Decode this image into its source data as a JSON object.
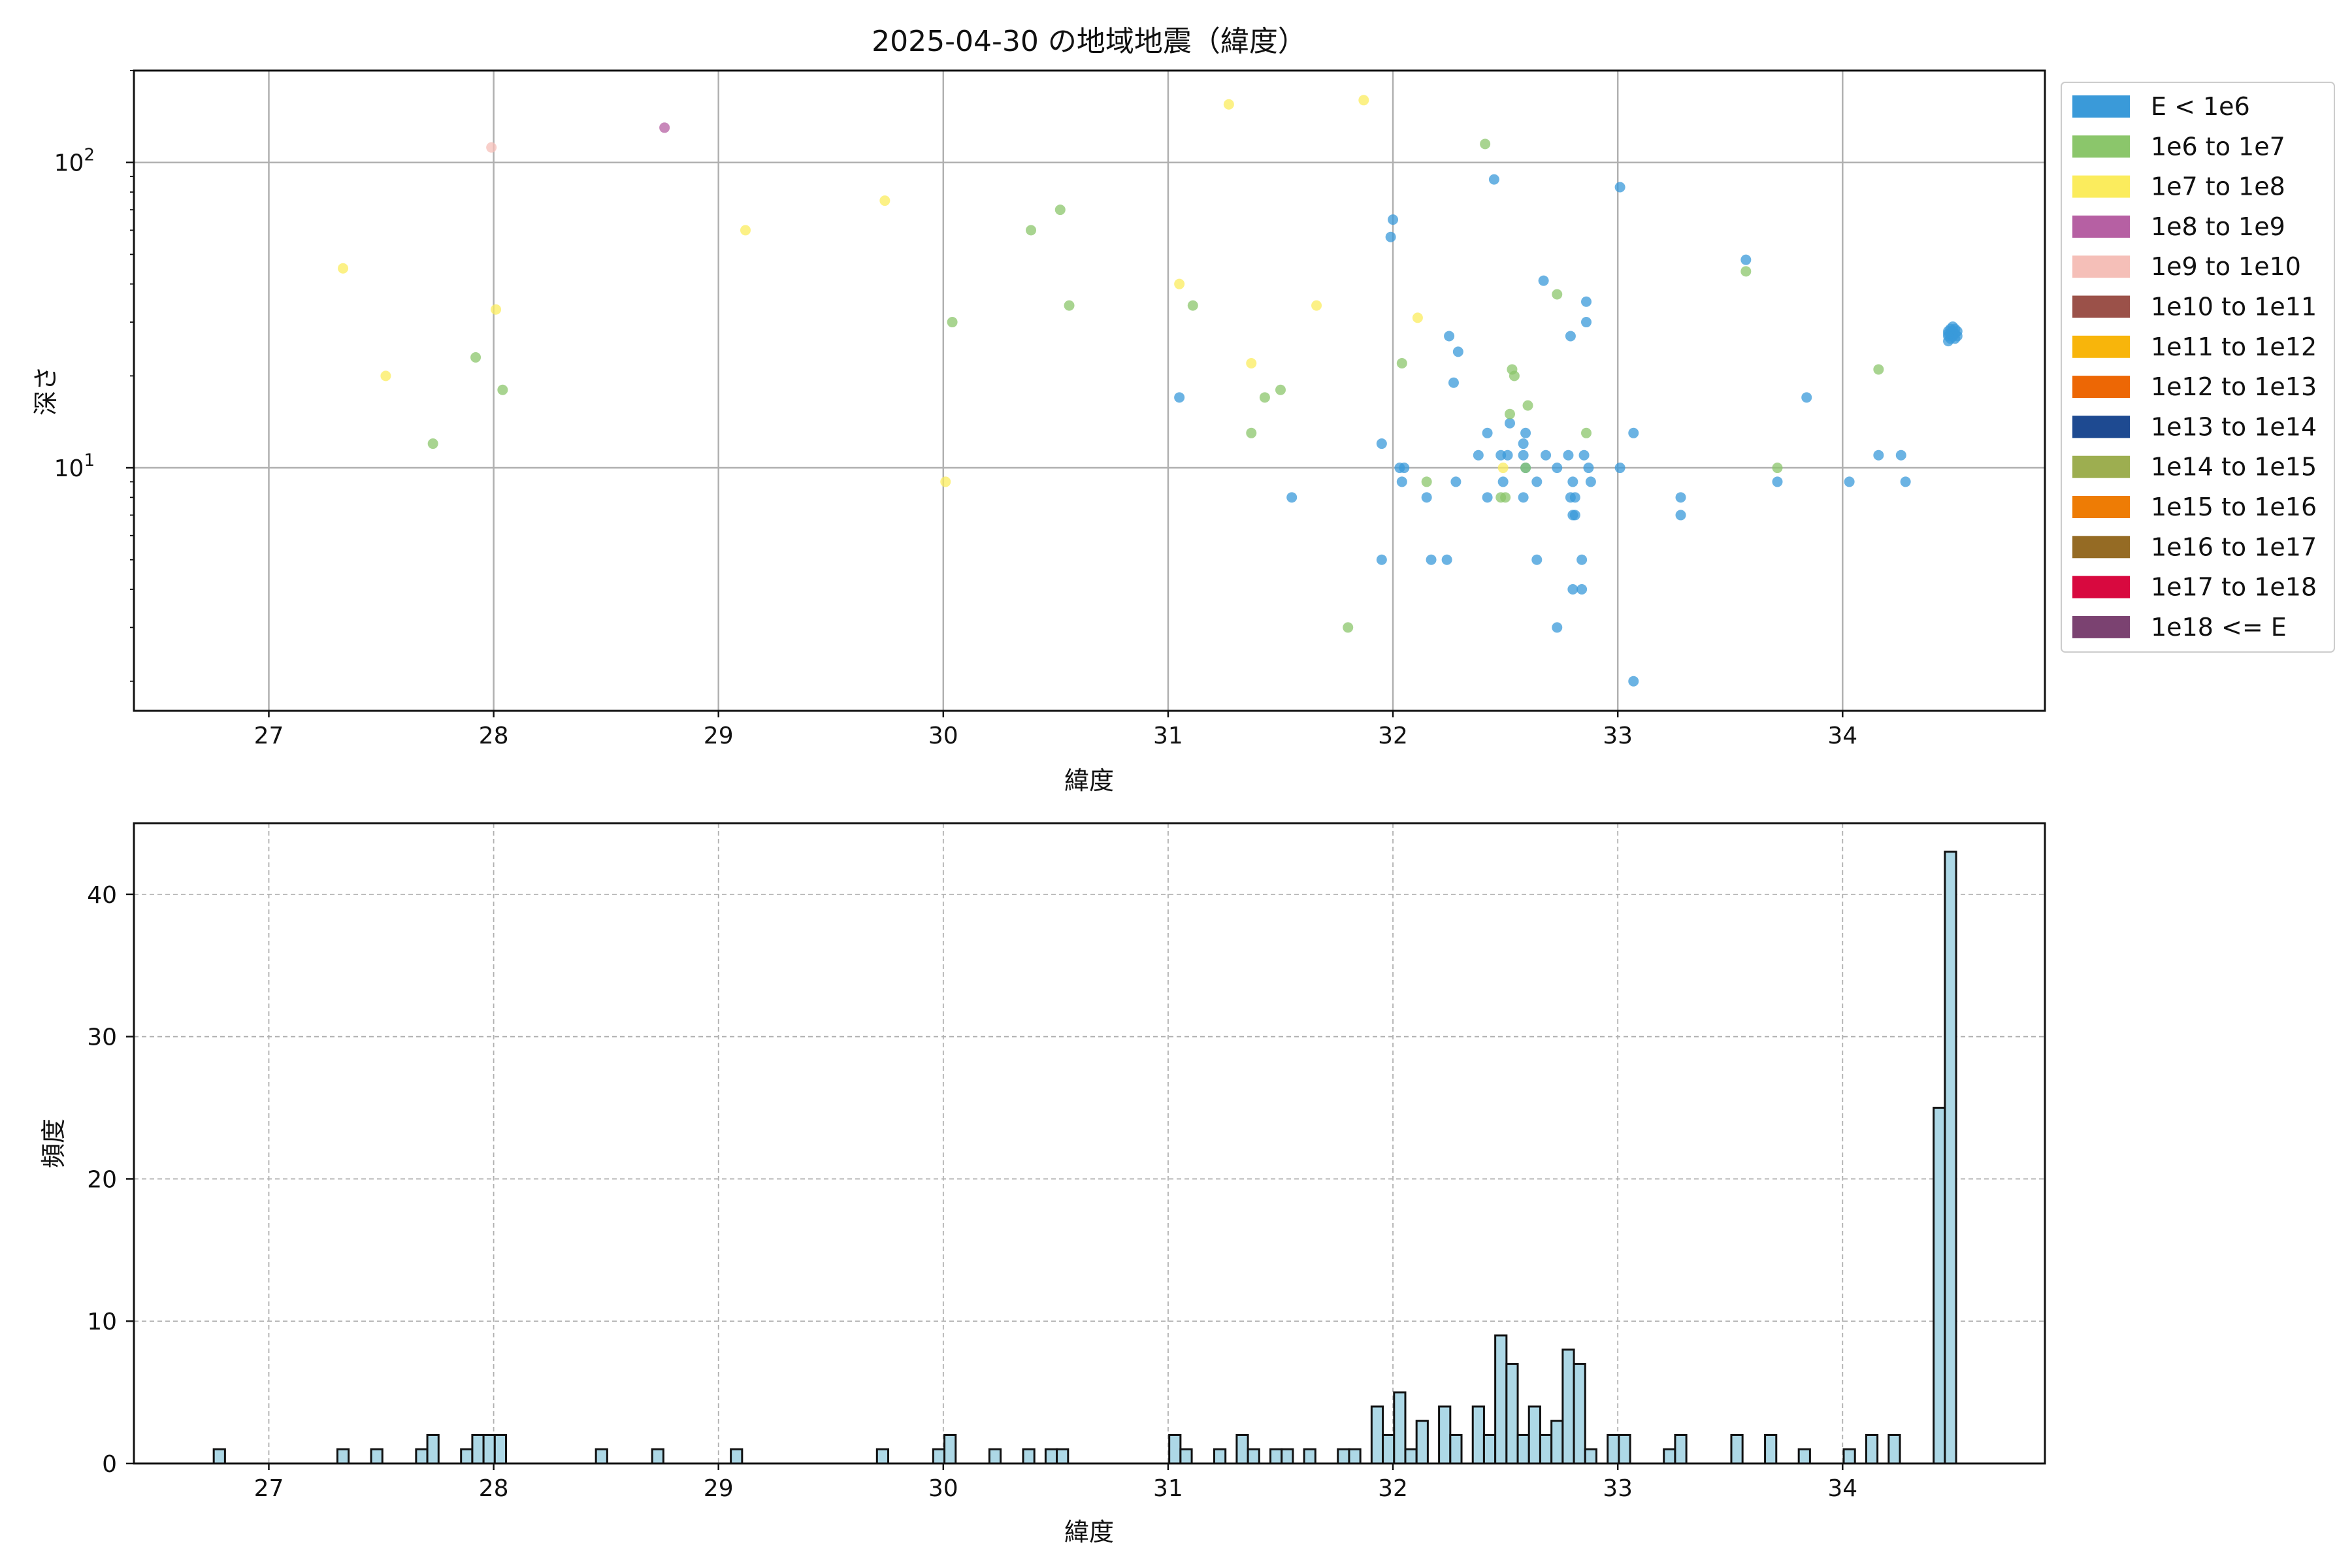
{
  "chart_data": [
    {
      "type": "scatter",
      "title": "2025-04-30 の地域地震（緯度）",
      "xlabel": "緯度",
      "ylabel": "深さ",
      "xlim": [
        26.4,
        34.9
      ],
      "ylim": [
        200,
        1.6
      ],
      "y_scale": "log",
      "y_inverted": true,
      "grid": true,
      "x_ticks": [
        27,
        28,
        29,
        30,
        31,
        32,
        33,
        34
      ],
      "y_ticks": [
        {
          "value": 10,
          "base": "10",
          "exp": "1"
        },
        {
          "value": 100,
          "base": "10",
          "exp": "2"
        }
      ],
      "legend_position": "upper right outside",
      "legend": [
        {
          "label": "E < 1e6",
          "color": "#3a9ad9"
        },
        {
          "label": "1e6 to 1e7",
          "color": "#8bc66b"
        },
        {
          "label": "1e7 to 1e8",
          "color": "#fbec5d"
        },
        {
          "label": "1e8 to 1e9",
          "color": "#b660a3"
        },
        {
          "label": "1e9 to 1e10",
          "color": "#f5bfb8"
        },
        {
          "label": "1e10 to 1e11",
          "color": "#9b5149"
        },
        {
          "label": "1e11 to 1e12",
          "color": "#f8b50b"
        },
        {
          "label": "1e12 to 1e13",
          "color": "#ed6705"
        },
        {
          "label": "1e13 to 1e14",
          "color": "#1e4a91"
        },
        {
          "label": "1e14 to 1e15",
          "color": "#9dae50"
        },
        {
          "label": "1e15 to 1e16",
          "color": "#ee7c05"
        },
        {
          "label": "1e16 to 1e17",
          "color": "#956b24"
        },
        {
          "label": "1e17 to 1e18",
          "color": "#d8093f"
        },
        {
          "label": "1e18 <= E",
          "color": "#7b4271"
        }
      ],
      "series": [
        {
          "name": "E < 1e6",
          "color": "#3a9ad9",
          "points": [
            [
              33.07,
              2.0
            ],
            [
              32.73,
              3.0
            ],
            [
              32.8,
              4.0
            ],
            [
              32.84,
              4.0
            ],
            [
              31.95,
              5.0
            ],
            [
              32.64,
              5.0
            ],
            [
              32.17,
              5.0
            ],
            [
              32.24,
              5.0
            ],
            [
              32.84,
              5.0
            ],
            [
              32.8,
              7.0
            ],
            [
              32.81,
              7.0
            ],
            [
              33.28,
              7.0
            ],
            [
              31.55,
              8.0
            ],
            [
              32.15,
              8.0
            ],
            [
              32.42,
              8.0
            ],
            [
              32.58,
              8.0
            ],
            [
              32.79,
              8.0
            ],
            [
              32.81,
              8.0
            ],
            [
              33.28,
              8.0
            ],
            [
              32.04,
              9.0
            ],
            [
              32.28,
              9.0
            ],
            [
              32.49,
              9.0
            ],
            [
              32.64,
              9.0
            ],
            [
              32.8,
              9.0
            ],
            [
              32.88,
              9.0
            ],
            [
              33.71,
              9.0
            ],
            [
              34.03,
              9.0
            ],
            [
              34.28,
              9.0
            ],
            [
              32.03,
              10.0
            ],
            [
              32.05,
              10.0
            ],
            [
              32.59,
              10.0
            ],
            [
              32.73,
              10.0
            ],
            [
              32.87,
              10.0
            ],
            [
              33.01,
              10.0
            ],
            [
              32.38,
              11.0
            ],
            [
              32.48,
              11.0
            ],
            [
              32.51,
              11.0
            ],
            [
              32.58,
              11.0
            ],
            [
              32.68,
              11.0
            ],
            [
              32.78,
              11.0
            ],
            [
              32.85,
              11.0
            ],
            [
              34.16,
              11.0
            ],
            [
              34.26,
              11.0
            ],
            [
              31.95,
              12.0
            ],
            [
              32.58,
              12.0
            ],
            [
              32.42,
              13.0
            ],
            [
              32.59,
              13.0
            ],
            [
              33.07,
              13.0
            ],
            [
              32.52,
              14.0
            ],
            [
              31.05,
              17.0
            ],
            [
              33.84,
              17.0
            ],
            [
              32.27,
              19.0
            ],
            [
              32.29,
              24.0
            ],
            [
              32.25,
              27.0
            ],
            [
              32.79,
              27.0
            ],
            [
              32.86,
              30.0
            ],
            [
              32.86,
              35.0
            ],
            [
              32.67,
              41.0
            ],
            [
              33.57,
              48.0
            ],
            [
              31.99,
              57.0
            ],
            [
              32.0,
              65.0
            ],
            [
              33.01,
              83.0
            ],
            [
              32.45,
              88.0
            ],
            [
              34.47,
              26.0
            ],
            [
              34.48,
              26.5
            ],
            [
              34.5,
              26.5
            ],
            [
              34.47,
              27.0
            ],
            [
              34.49,
              27.0
            ],
            [
              34.51,
              27.0
            ],
            [
              34.47,
              27.5
            ],
            [
              34.48,
              27.5
            ],
            [
              34.5,
              27.5
            ],
            [
              34.47,
              28.0
            ],
            [
              34.49,
              28.0
            ],
            [
              34.51,
              28.0
            ],
            [
              34.48,
              28.5
            ],
            [
              34.5,
              28.5
            ],
            [
              34.49,
              29.0
            ]
          ]
        },
        {
          "name": "1e6 to 1e7",
          "color": "#8bc66b",
          "points": [
            [
              31.8,
              3.0
            ],
            [
              32.48,
              8.0
            ],
            [
              32.5,
              8.0
            ],
            [
              32.15,
              9.0
            ],
            [
              33.71,
              10.0
            ],
            [
              32.59,
              10.0
            ],
            [
              27.73,
              12.0
            ],
            [
              31.37,
              13.0
            ],
            [
              32.52,
              15.0
            ],
            [
              32.6,
              16.0
            ],
            [
              31.43,
              17.0
            ],
            [
              31.5,
              18.0
            ],
            [
              28.04,
              18.0
            ],
            [
              32.54,
              20.0
            ],
            [
              32.53,
              21.0
            ],
            [
              34.16,
              21.0
            ],
            [
              32.04,
              22.0
            ],
            [
              27.92,
              23.0
            ],
            [
              30.04,
              30.0
            ],
            [
              30.56,
              34.0
            ],
            [
              31.11,
              34.0
            ],
            [
              32.73,
              37.0
            ],
            [
              33.57,
              44.0
            ],
            [
              30.39,
              60.0
            ],
            [
              30.52,
              70.0
            ],
            [
              32.41,
              115.0
            ],
            [
              32.86,
              13.0
            ]
          ]
        },
        {
          "name": "1e7 to 1e8",
          "color": "#fbec5d",
          "points": [
            [
              30.01,
              9.0
            ],
            [
              32.49,
              10.0
            ],
            [
              27.52,
              20.0
            ],
            [
              31.37,
              22.0
            ],
            [
              32.11,
              31.0
            ],
            [
              28.01,
              33.0
            ],
            [
              31.66,
              34.0
            ],
            [
              31.05,
              40.0
            ],
            [
              27.33,
              45.0
            ],
            [
              29.12,
              60.0
            ],
            [
              29.74,
              75.0
            ],
            [
              31.27,
              155.0
            ],
            [
              31.87,
              160.0
            ]
          ]
        },
        {
          "name": "1e8 to 1e9",
          "color": "#b660a3",
          "points": [
            [
              28.76,
              130.0
            ]
          ]
        },
        {
          "name": "1e9 to 1e10",
          "color": "#f5bfb8",
          "points": [
            [
              27.99,
              112.0
            ]
          ]
        }
      ]
    },
    {
      "type": "bar",
      "subtype": "histogram",
      "xlabel": "緯度",
      "ylabel": "頻度",
      "xlim": [
        26.4,
        34.9
      ],
      "ylim": [
        0,
        45
      ],
      "grid": true,
      "x_ticks": [
        27,
        28,
        29,
        30,
        31,
        32,
        33,
        34
      ],
      "y_ticks": [
        0,
        10,
        20,
        30,
        40
      ],
      "bar_color": "#add8e6",
      "edge_color": "#111111",
      "bin_width": 0.05,
      "bins": [
        [
          26.78,
          1
        ],
        [
          27.33,
          1
        ],
        [
          27.48,
          1
        ],
        [
          27.68,
          1
        ],
        [
          27.73,
          2
        ],
        [
          27.88,
          1
        ],
        [
          27.93,
          2
        ],
        [
          27.98,
          2
        ],
        [
          28.03,
          2
        ],
        [
          28.48,
          1
        ],
        [
          28.73,
          1
        ],
        [
          29.08,
          1
        ],
        [
          29.73,
          1
        ],
        [
          29.98,
          1
        ],
        [
          30.03,
          2
        ],
        [
          30.23,
          1
        ],
        [
          30.38,
          1
        ],
        [
          30.48,
          1
        ],
        [
          30.53,
          1
        ],
        [
          31.03,
          2
        ],
        [
          31.08,
          1
        ],
        [
          31.23,
          1
        ],
        [
          31.33,
          2
        ],
        [
          31.38,
          1
        ],
        [
          31.48,
          1
        ],
        [
          31.53,
          1
        ],
        [
          31.63,
          1
        ],
        [
          31.78,
          1
        ],
        [
          31.83,
          1
        ],
        [
          31.93,
          4
        ],
        [
          31.98,
          2
        ],
        [
          32.03,
          5
        ],
        [
          32.08,
          1
        ],
        [
          32.13,
          3
        ],
        [
          32.23,
          4
        ],
        [
          32.28,
          2
        ],
        [
          32.38,
          4
        ],
        [
          32.43,
          2
        ],
        [
          32.48,
          9
        ],
        [
          32.53,
          7
        ],
        [
          32.58,
          2
        ],
        [
          32.63,
          4
        ],
        [
          32.68,
          2
        ],
        [
          32.73,
          3
        ],
        [
          32.78,
          8
        ],
        [
          32.83,
          7
        ],
        [
          32.88,
          1
        ],
        [
          32.98,
          2
        ],
        [
          33.03,
          2
        ],
        [
          33.23,
          1
        ],
        [
          33.28,
          2
        ],
        [
          33.53,
          2
        ],
        [
          33.68,
          2
        ],
        [
          33.83,
          1
        ],
        [
          34.03,
          1
        ],
        [
          34.13,
          2
        ],
        [
          34.23,
          2
        ],
        [
          34.43,
          25
        ],
        [
          34.48,
          43
        ]
      ]
    }
  ]
}
